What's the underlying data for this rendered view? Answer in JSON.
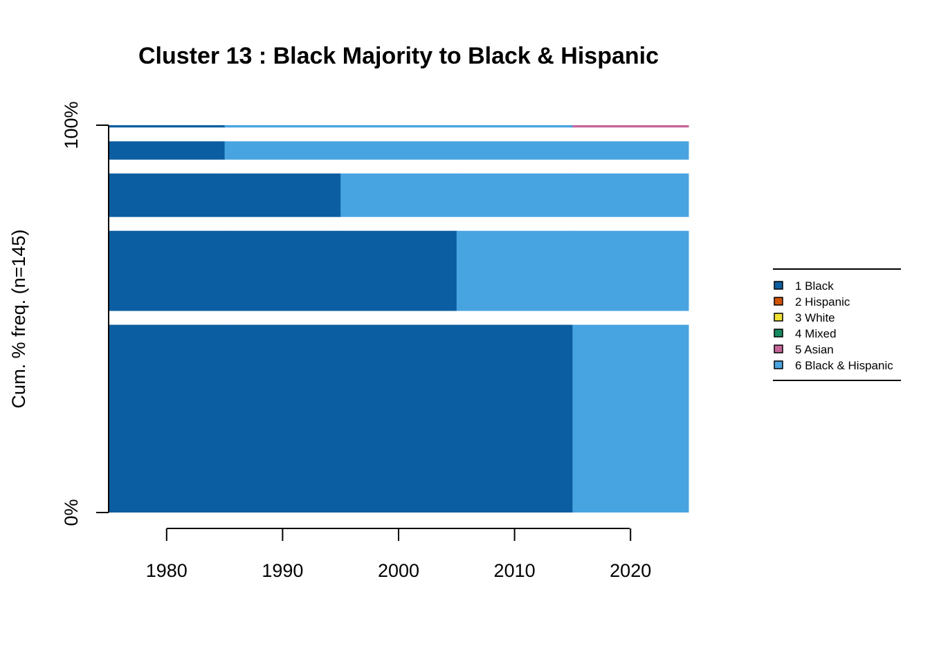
{
  "chart_data": {
    "type": "bar",
    "subtype": "sequence-frequency",
    "title": "Cluster 13 : Black Majority to Black & Hispanic",
    "ylabel": "Cum. % freq. (n=145)",
    "xlabel": "",
    "y_ticks": [
      "0%",
      "100%"
    ],
    "x_ticks": [
      1980,
      1990,
      2000,
      2010,
      2020
    ],
    "xlim": [
      1975,
      2025
    ],
    "time_points": [
      1980,
      1990,
      2000,
      2010,
      2020
    ],
    "n": 145,
    "states": [
      {
        "code": "1",
        "label": "1 Black",
        "color": "#0B5EA1"
      },
      {
        "code": "2",
        "label": "2 Hispanic",
        "color": "#D35400"
      },
      {
        "code": "3",
        "label": "3 White",
        "color": "#F1E130"
      },
      {
        "code": "4",
        "label": "4 Mixed",
        "color": "#138B5F"
      },
      {
        "code": "5",
        "label": "5 Asian",
        "color": "#C6659A"
      },
      {
        "code": "6",
        "label": "6 Black & Hispanic",
        "color": "#48A4E1"
      }
    ],
    "sequences": [
      {
        "states": [
          "1",
          "1",
          "1",
          "1",
          "6"
        ],
        "count": 82
      },
      {
        "states": [
          "1",
          "1",
          "1",
          "6",
          "6"
        ],
        "count": 35
      },
      {
        "states": [
          "1",
          "1",
          "6",
          "6",
          "6"
        ],
        "count": 19
      },
      {
        "states": [
          "1",
          "6",
          "6",
          "6",
          "6"
        ],
        "count": 8
      },
      {
        "states": [
          "1",
          "6",
          "6",
          "6",
          "5"
        ],
        "count": 1
      }
    ],
    "legend_position": "right"
  }
}
